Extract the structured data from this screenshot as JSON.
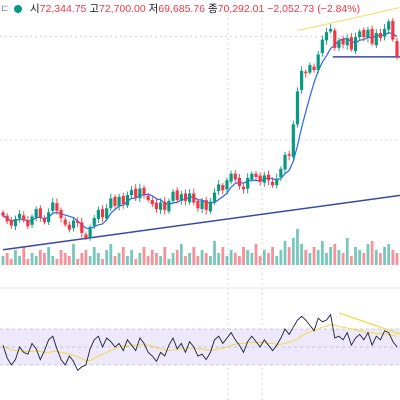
{
  "colors": {
    "up": "#089981",
    "down": "#f23645",
    "ma": "#2962ff",
    "trend": "#3649a8",
    "wedge": "#f7df7a",
    "rsi": "#1c1f3a",
    "rsi_ma": "#f2d74a",
    "rsi_band": "#ede9fb",
    "grid": "#c9cdd6"
  },
  "header": {
    "corner": "ㄷ",
    "open_label": "시",
    "open": "72,344.75",
    "high_label": "고",
    "high": "72,700.00",
    "low_label": "저",
    "low": "69,685.76",
    "close_label": "종",
    "close": "70,292.01",
    "change": "−2,052.73",
    "change_pct": "(−2.84%)"
  },
  "chart_data": [
    {
      "type": "candlestick",
      "title": "",
      "price_range": [
        45000,
        76000
      ],
      "closes": [
        51000,
        50300,
        49800,
        50600,
        51200,
        50400,
        49700,
        50900,
        51800,
        50800,
        50200,
        51400,
        52600,
        51600,
        50700,
        49900,
        49300,
        50400,
        50100,
        48900,
        48300,
        49600,
        50700,
        51700,
        50800,
        51900,
        53100,
        52200,
        53300,
        52400,
        53500,
        54100,
        53200,
        54300,
        53600,
        52900,
        52400,
        51800,
        52600,
        51700,
        52800,
        53900,
        52900,
        53600,
        52800,
        53700,
        52600,
        51900,
        52800,
        51700,
        52700,
        53800,
        54800,
        54100,
        55300,
        56100,
        55400,
        54600,
        54200,
        55600,
        56100,
        55700,
        55100,
        55900,
        55300,
        54700,
        55500,
        56700,
        58400,
        58300,
        62100,
        66100,
        68600,
        68300,
        69300,
        68700,
        70600,
        72400,
        73300,
        73700,
        71400,
        72300,
        71800,
        72600,
        71200,
        72700,
        73400,
        72700,
        73600,
        71900,
        73200,
        72600,
        73700,
        74600,
        72400,
        70300
      ],
      "moving_average": "trailing mean (blue)",
      "trendline": {
        "from": [
          0,
          46850
        ],
        "to": [
          95,
          53300
        ]
      },
      "horizontal_support": 70300,
      "wedge_upper": {
        "from": [
          71,
          73500
        ],
        "to": [
          95,
          76300
        ]
      },
      "gridlines": [
        72800,
        60200,
        36000
      ],
      "volume": [
        3,
        4,
        2,
        5,
        3,
        6,
        2,
        4,
        3,
        5,
        4,
        6,
        3,
        2,
        5,
        4,
        3,
        7,
        2,
        4,
        5,
        3,
        6,
        4,
        2,
        5,
        7,
        3,
        4,
        6,
        3,
        5,
        2,
        4,
        6,
        3,
        5,
        4,
        3,
        6,
        2,
        4,
        5,
        7,
        3,
        4,
        6,
        3,
        5,
        4,
        3,
        8,
        4,
        6,
        3,
        5,
        4,
        3,
        6,
        5,
        4,
        7,
        3,
        5,
        4,
        6,
        3,
        5,
        8,
        6,
        9,
        12,
        7,
        5,
        4,
        6,
        5,
        8,
        4,
        6,
        7,
        5,
        4,
        9,
        3,
        6,
        5,
        4,
        7,
        8,
        5,
        4,
        6,
        7,
        5,
        4
      ]
    },
    {
      "type": "line",
      "title": "",
      "name": "",
      "ylim": [
        0,
        100
      ],
      "band": [
        30,
        70
      ],
      "values": [
        52,
        38,
        30,
        36,
        50,
        44,
        42,
        54,
        48,
        36,
        46,
        58,
        62,
        48,
        36,
        30,
        40,
        34,
        24,
        28,
        30,
        48,
        58,
        62,
        50,
        60,
        56,
        50,
        54,
        46,
        58,
        52,
        46,
        60,
        54,
        44,
        40,
        34,
        44,
        40,
        52,
        60,
        48,
        54,
        44,
        56,
        50,
        40,
        42,
        36,
        44,
        58,
        62,
        54,
        60,
        66,
        58,
        52,
        44,
        56,
        62,
        56,
        50,
        58,
        52,
        46,
        52,
        60,
        70,
        64,
        72,
        80,
        84,
        80,
        74,
        68,
        82,
        78,
        80,
        86,
        60,
        62,
        58,
        66,
        52,
        60,
        64,
        58,
        66,
        52,
        62,
        58,
        68,
        66,
        56,
        50
      ],
      "ma_values": [
        50,
        49,
        47,
        46,
        46,
        45,
        45,
        45,
        46,
        45,
        44,
        44,
        45,
        45,
        44,
        43,
        42,
        41,
        39,
        37,
        35,
        35,
        37,
        40,
        42,
        44,
        46,
        48,
        50,
        51,
        51,
        52,
        52,
        53,
        53,
        52,
        51,
        49,
        48,
        47,
        46,
        47,
        47,
        48,
        48,
        49,
        49,
        48,
        48,
        47,
        46,
        47,
        48,
        49,
        50,
        52,
        53,
        54,
        54,
        55,
        55,
        55,
        55,
        55,
        54,
        54,
        53,
        53,
        54,
        55,
        57,
        59,
        62,
        65,
        67,
        68,
        70,
        72,
        73,
        75,
        74,
        73,
        72,
        71,
        70,
        69,
        68,
        67,
        66,
        66,
        65,
        65,
        64,
        64,
        63,
        62
      ],
      "divergence_line": {
        "from": [
          81,
          88
        ],
        "to": [
          95,
          69
        ]
      }
    }
  ]
}
